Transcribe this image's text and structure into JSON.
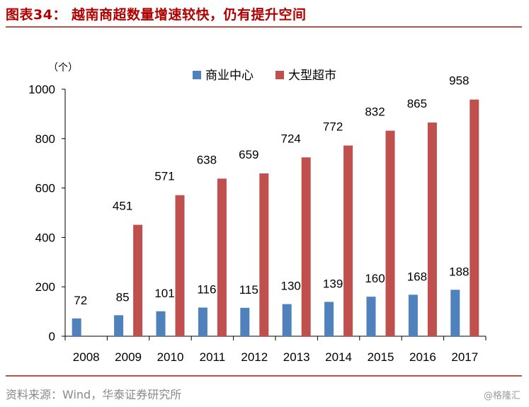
{
  "figure": {
    "title": "图表34：  越南商超数量增速较快，仍有提升空间",
    "source": "资料来源：Wind，华泰证券研究所",
    "watermark": "@格隆汇"
  },
  "colors": {
    "accent": "#c0504d",
    "title": "#b00000",
    "series_blue": "#4f81bd",
    "series_red": "#c0504d"
  },
  "chart_data": {
    "type": "bar",
    "title": "",
    "xlabel": "",
    "ylabel": "（个）",
    "ylim": [
      0,
      1000
    ],
    "yticks": [
      0,
      200,
      400,
      600,
      800,
      1000
    ],
    "grid": false,
    "legend_position": "top",
    "categories": [
      "2008",
      "2009",
      "2010",
      "2011",
      "2012",
      "2013",
      "2014",
      "2015",
      "2016",
      "2017"
    ],
    "series": [
      {
        "name": "商业中心",
        "color": "#4f81bd",
        "values": [
          72,
          85,
          101,
          116,
          115,
          130,
          139,
          160,
          168,
          188
        ]
      },
      {
        "name": "大型超市",
        "color": "#c0504d",
        "values": [
          null,
          451,
          571,
          638,
          659,
          724,
          772,
          832,
          865,
          958
        ]
      }
    ]
  }
}
